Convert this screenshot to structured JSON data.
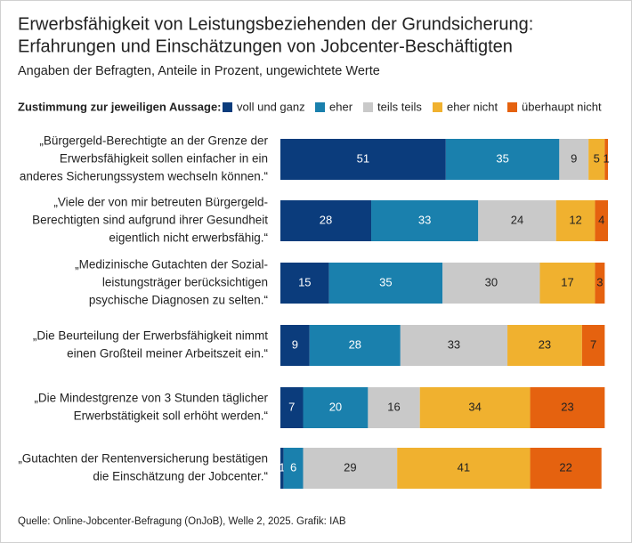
{
  "chart_data": {
    "type": "stacked-bar-horizontal",
    "title": [
      "Erwerbsfähigkeit von Leistungsbeziehenden der Grundsicherung:",
      "Erfahrungen und Einschätzungen von Jobcenter-Beschäftigten"
    ],
    "subtitle": "Angaben der Befragten, Anteile in Prozent, ungewichtete Werte",
    "legend_title": "Zustimmung zur jeweiligen Aussage:",
    "source": "Quelle: Online-Jobcenter-Befragung (OnJoB), Welle 2, 2025. Grafik: IAB",
    "categories": [
      [
        "„Bürgergeld-Berechtigte an der Grenze der",
        "Erwerbsfähigkeit sollen einfacher in ein",
        "anderes Sicherungssystem wechseln können.“"
      ],
      [
        "„Viele der von mir betreuten Bürgergeld-",
        "Berechtigten sind aufgrund ihrer Gesundheit",
        "eigentlich nicht erwerbsfähig.“"
      ],
      [
        "„Medizinische Gutachten der Sozial-",
        "leistungsträger berücksichtigen",
        "psychische Diagnosen zu selten.“"
      ],
      [
        "„Die Beurteilung der Erwerbsfähigkeit nimmt",
        "einen Großteil meiner Arbeitszeit ein.“"
      ],
      [
        "„Die Mindestgrenze von 3 Stunden täglicher",
        "Erwerbstätigkeit soll erhöht werden.“"
      ],
      [
        "„Gutachten der Rentenversicherung bestätigen",
        "die Einschätzung der Jobcenter.“"
      ]
    ],
    "series": [
      {
        "name": "voll und ganz",
        "color": "#0b3c7c",
        "values": [
          51,
          28,
          15,
          9,
          7,
          1
        ]
      },
      {
        "name": "eher",
        "color": "#1a80ad",
        "values": [
          35,
          33,
          35,
          28,
          20,
          6
        ]
      },
      {
        "name": "teils teils",
        "color": "#c9c9c9",
        "values": [
          9,
          24,
          30,
          33,
          16,
          29
        ]
      },
      {
        "name": "eher nicht",
        "color": "#f0b12f",
        "values": [
          5,
          12,
          17,
          23,
          34,
          41
        ]
      },
      {
        "name": "überhaupt nicht",
        "color": "#e5620f",
        "values": [
          1,
          4,
          3,
          7,
          23,
          22
        ]
      }
    ],
    "xlim": [
      0,
      101
    ]
  }
}
